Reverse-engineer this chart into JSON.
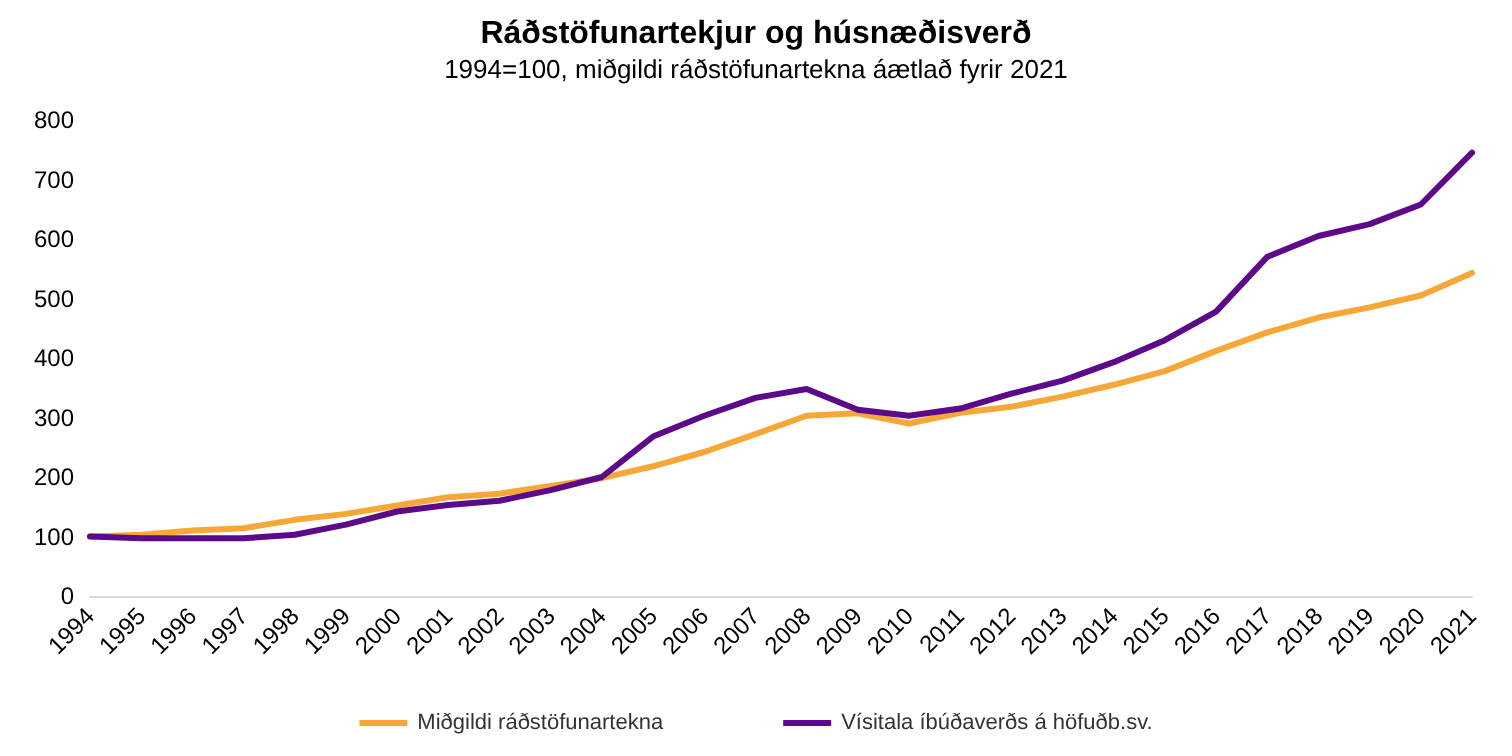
{
  "chart_data": {
    "type": "line",
    "title": "Ráðstöfunartekjur og húsnæðisverð",
    "subtitle": "1994=100, miðgildi ráðstöfunartekna áætlað fyrir 2021",
    "categories": [
      "1994",
      "1995",
      "1996",
      "1997",
      "1998",
      "1999",
      "2000",
      "2001",
      "2002",
      "2003",
      "2004",
      "2005",
      "2006",
      "2007",
      "2008",
      "2009",
      "2010",
      "2011",
      "2012",
      "2013",
      "2014",
      "2015",
      "2016",
      "2017",
      "2018",
      "2019",
      "2020",
      "2021"
    ],
    "series": [
      {
        "name": "Miðgildi ráðstöfunartekna",
        "color": "#f7a738",
        "values": [
          100,
          103,
          110,
          114,
          128,
          138,
          152,
          166,
          172,
          185,
          198,
          218,
          242,
          272,
          303,
          307,
          290,
          308,
          318,
          335,
          355,
          378,
          412,
          443,
          468,
          485,
          505,
          543
        ]
      },
      {
        "name": "Vísitala íbúðaverðs á höfuðb.sv.",
        "color": "#5c0a8a",
        "values": [
          100,
          97,
          97,
          97,
          103,
          120,
          142,
          153,
          160,
          178,
          200,
          268,
          303,
          333,
          348,
          313,
          303,
          315,
          340,
          362,
          393,
          430,
          478,
          570,
          605,
          625,
          658,
          745
        ]
      }
    ],
    "ylim": [
      0,
      800
    ],
    "yticks": [
      0,
      100,
      200,
      300,
      400,
      500,
      600,
      700,
      800
    ],
    "grid": false,
    "legend": "bottom",
    "marker": "none",
    "line_style": "solid"
  }
}
